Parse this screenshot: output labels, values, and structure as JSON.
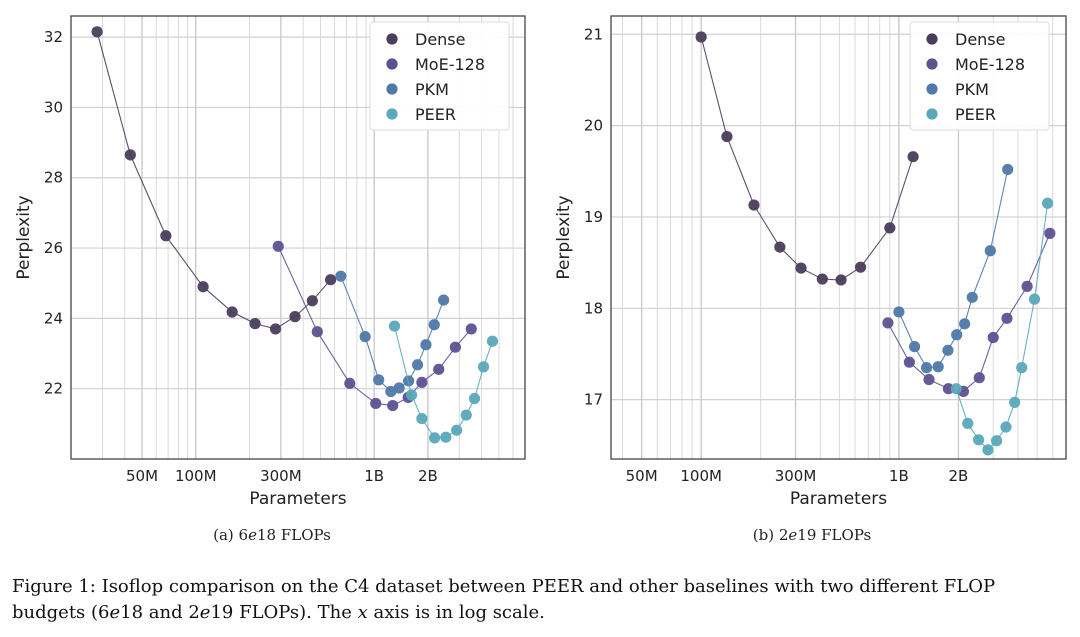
{
  "chart_data": [
    {
      "type": "line",
      "x_scale": "log",
      "xlabel": "Parameters",
      "ylabel": "Perplexity",
      "subcaption_parts": [
        "(a) 6",
        "e",
        "18 FLOPs"
      ],
      "xlim": [
        20000000,
        7000000000
      ],
      "ylim": [
        20,
        32.6
      ],
      "x_ticks": [
        {
          "value": 50000000,
          "label": "50M"
        },
        {
          "value": 100000000,
          "label": "100M"
        },
        {
          "value": 300000000,
          "label": "300M"
        },
        {
          "value": 1000000000,
          "label": "1B"
        },
        {
          "value": 2000000000,
          "label": "2B"
        }
      ],
      "y_ticks": [
        {
          "value": 22,
          "label": "22"
        },
        {
          "value": 24,
          "label": "24"
        },
        {
          "value": 26,
          "label": "26"
        },
        {
          "value": 28,
          "label": "28"
        },
        {
          "value": 30,
          "label": "30"
        },
        {
          "value": 32,
          "label": "32"
        }
      ],
      "legend_position": "top-right",
      "grid": true,
      "series": [
        {
          "name": "Dense",
          "color": "#4b3d5c",
          "points": [
            [
              28000000,
              32.15
            ],
            [
              43000000,
              28.65
            ],
            [
              68000000,
              26.35
            ],
            [
              110000000,
              24.9
            ],
            [
              160000000,
              24.18
            ],
            [
              215000000,
              23.85
            ],
            [
              280000000,
              23.7
            ],
            [
              360000000,
              24.05
            ],
            [
              450000000,
              24.5
            ],
            [
              570000000,
              25.1
            ]
          ]
        },
        {
          "name": "MoE-128",
          "color": "#5e5191",
          "points": [
            [
              290000000,
              26.05
            ],
            [
              480000000,
              23.62
            ],
            [
              730000000,
              22.15
            ],
            [
              1020000000,
              21.58
            ],
            [
              1270000000,
              21.52
            ],
            [
              1550000000,
              21.75
            ],
            [
              1850000000,
              22.18
            ],
            [
              2300000000,
              22.55
            ],
            [
              2850000000,
              23.18
            ],
            [
              3500000000,
              23.7
            ]
          ]
        },
        {
          "name": "PKM",
          "color": "#4f79a8",
          "points": [
            [
              650000000,
              25.2
            ],
            [
              890000000,
              23.48
            ],
            [
              1060000000,
              22.25
            ],
            [
              1240000000,
              21.92
            ],
            [
              1380000000,
              22.02
            ],
            [
              1560000000,
              22.22
            ],
            [
              1750000000,
              22.68
            ],
            [
              1950000000,
              23.25
            ],
            [
              2170000000,
              23.82
            ],
            [
              2450000000,
              24.52
            ]
          ]
        },
        {
          "name": "PEER",
          "color": "#5aa8bb",
          "points": [
            [
              1300000000,
              23.78
            ],
            [
              1620000000,
              21.82
            ],
            [
              1850000000,
              21.15
            ],
            [
              2180000000,
              20.6
            ],
            [
              2520000000,
              20.62
            ],
            [
              2900000000,
              20.82
            ],
            [
              3280000000,
              21.25
            ],
            [
              3650000000,
              21.72
            ],
            [
              4100000000,
              22.62
            ],
            [
              4600000000,
              23.35
            ]
          ]
        }
      ]
    },
    {
      "type": "line",
      "x_scale": "log",
      "xlabel": "Parameters",
      "ylabel": "Perplexity",
      "subcaption_parts": [
        "(b) 2",
        "e",
        "19 FLOPs"
      ],
      "xlim": [
        35000000,
        7000000000
      ],
      "ylim": [
        16.35,
        21.2
      ],
      "x_ticks": [
        {
          "value": 50000000,
          "label": "50M"
        },
        {
          "value": 100000000,
          "label": "100M"
        },
        {
          "value": 300000000,
          "label": "300M"
        },
        {
          "value": 1000000000,
          "label": "1B"
        },
        {
          "value": 2000000000,
          "label": "2B"
        }
      ],
      "y_ticks": [
        {
          "value": 17,
          "label": "17"
        },
        {
          "value": 18,
          "label": "18"
        },
        {
          "value": 19,
          "label": "19"
        },
        {
          "value": 20,
          "label": "20"
        },
        {
          "value": 21,
          "label": "21"
        }
      ],
      "legend_position": "top-right",
      "grid": true,
      "series": [
        {
          "name": "Dense",
          "color": "#4b3d5c",
          "points": [
            [
              100000000,
              20.97
            ],
            [
              135000000,
              19.88
            ],
            [
              185000000,
              19.13
            ],
            [
              250000000,
              18.67
            ],
            [
              320000000,
              18.44
            ],
            [
              410000000,
              18.32
            ],
            [
              510000000,
              18.31
            ],
            [
              640000000,
              18.45
            ],
            [
              900000000,
              18.88
            ],
            [
              1180000000,
              19.66
            ]
          ]
        },
        {
          "name": "MoE-128",
          "color": "#5e5191",
          "points": [
            [
              880000000,
              17.84
            ],
            [
              1130000000,
              17.41
            ],
            [
              1420000000,
              17.22
            ],
            [
              1780000000,
              17.12
            ],
            [
              2120000000,
              17.09
            ],
            [
              2550000000,
              17.24
            ],
            [
              3000000000,
              17.68
            ],
            [
              3520000000,
              17.89
            ],
            [
              4450000000,
              18.24
            ],
            [
              5800000000,
              18.82
            ]
          ]
        },
        {
          "name": "PKM",
          "color": "#4f79a8",
          "points": [
            [
              1000000000,
              17.96
            ],
            [
              1200000000,
              17.58
            ],
            [
              1380000000,
              17.35
            ],
            [
              1580000000,
              17.36
            ],
            [
              1770000000,
              17.54
            ],
            [
              1960000000,
              17.71
            ],
            [
              2150000000,
              17.83
            ],
            [
              2350000000,
              18.12
            ],
            [
              2900000000,
              18.63
            ],
            [
              3550000000,
              19.52
            ]
          ]
        },
        {
          "name": "PEER",
          "color": "#5aa8bb",
          "points": [
            [
              1950000000,
              17.12
            ],
            [
              2230000000,
              16.74
            ],
            [
              2530000000,
              16.56
            ],
            [
              2820000000,
              16.45
            ],
            [
              3120000000,
              16.55
            ],
            [
              3480000000,
              16.7
            ],
            [
              3850000000,
              16.97
            ],
            [
              4180000000,
              17.35
            ],
            [
              4850000000,
              18.1
            ],
            [
              5650000000,
              19.15
            ]
          ]
        }
      ]
    }
  ],
  "caption_parts": [
    "Figure 1: Isoflop comparison on the C4 dataset between PEER and other baselines with two different FLOP budgets (6",
    "e",
    "18 and 2",
    "e",
    "19 FLOPs). The ",
    "x",
    " axis is in log scale."
  ]
}
